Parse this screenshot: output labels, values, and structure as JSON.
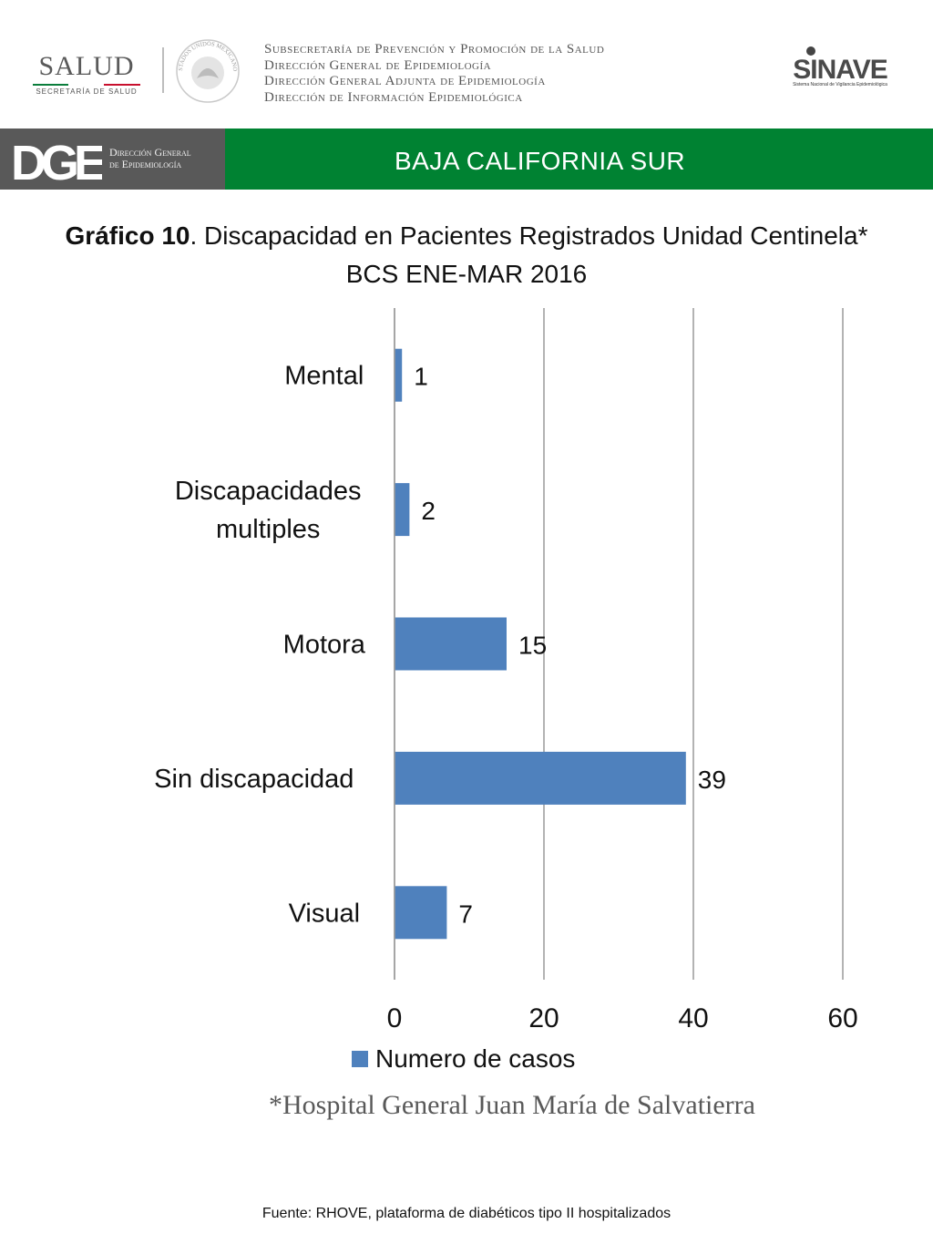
{
  "header": {
    "salud_word": "SALUD",
    "salud_sub": "SECRETARÍA DE SALUD",
    "seal_text": "ESTADOS UNIDOS MEXICANOS",
    "agencies": [
      "Subsecretaría de Prevención y Promoción de la Salud",
      "Dirección General de Epidemiología",
      "Dirección General Adjunta de Epidemiología",
      "Dirección de Información Epidemiológica"
    ],
    "sinave_logo": "SINAVE",
    "sinave_sub": "Sistema Nacional de Vigilancia Epidemiológica"
  },
  "banner": {
    "dge_logo": "DGE",
    "dge_line1": "Dirección General",
    "dge_line2": "de Epidemiología",
    "state": "BAJA CALIFORNIA SUR",
    "colors": {
      "gray": "#595959",
      "green": "#008232"
    }
  },
  "title": {
    "bold": "Gráfico 10",
    "rest": ". Discapacidad en Pacientes Registrados  Unidad Centinela* BCS ENE-MAR 2016"
  },
  "chart_data": {
    "type": "bar",
    "orientation": "horizontal",
    "categories": [
      "Mental",
      "Discapacidades multiples",
      "Motora",
      "Sin discapacidad",
      "Visual"
    ],
    "series": [
      {
        "name": "Numero de casos",
        "values": [
          1,
          2,
          15,
          39,
          7
        ],
        "color": "#4f81bd"
      }
    ],
    "xlim": [
      0,
      60
    ],
    "xticks": [
      0,
      20,
      40,
      60
    ],
    "grid": true,
    "legend": "bottom"
  },
  "footnote": "*Hospital General Juan María de Salvatierra",
  "source": "Fuente: RHOVE, plataforma de diabéticos tipo II hospitalizados"
}
